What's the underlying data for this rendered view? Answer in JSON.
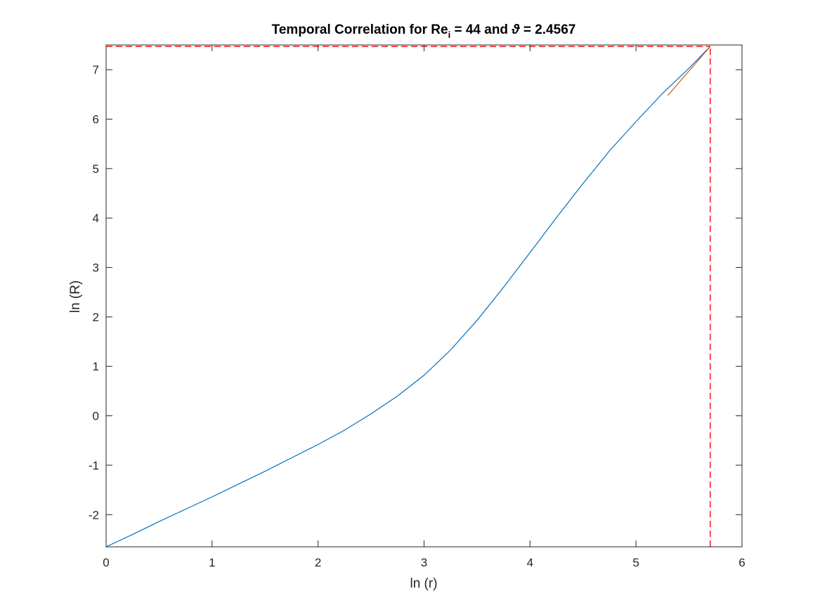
{
  "chart_data": {
    "type": "line",
    "title": {
      "prefix": "Temporal Correlation for Re",
      "subscript": "i",
      "middle": " = 44 and ",
      "symbol": "ϑ",
      "suffix": " = 2.4567"
    },
    "xlabel": "ln (r)",
    "ylabel": "ln (R)",
    "xlim": [
      0,
      6
    ],
    "ylim": [
      -2.65,
      7.5
    ],
    "xticks": [
      "0",
      "1",
      "2",
      "3",
      "4",
      "5",
      "6"
    ],
    "yticks": [
      "-2",
      "-1",
      "0",
      "1",
      "2",
      "3",
      "4",
      "5",
      "6",
      "7"
    ],
    "grid": false,
    "series": [
      {
        "color": "#0072BD",
        "style": "solid",
        "x": [
          0,
          0.25,
          0.5,
          0.75,
          1.0,
          1.25,
          1.5,
          1.75,
          2.0,
          2.25,
          2.5,
          2.75,
          3.0,
          3.25,
          3.5,
          3.75,
          4.0,
          4.25,
          4.5,
          4.75,
          5.0,
          5.25,
          5.5,
          5.7
        ],
        "y": [
          -2.65,
          -2.4,
          -2.14,
          -1.89,
          -1.64,
          -1.38,
          -1.12,
          -0.85,
          -0.58,
          -0.29,
          0.04,
          0.4,
          0.82,
          1.33,
          1.93,
          2.6,
          3.3,
          4.01,
          4.7,
          5.36,
          5.95,
          6.52,
          7.03,
          7.47
        ]
      },
      {
        "color": "#D95319",
        "style": "solid",
        "x": [
          5.3,
          5.7
        ],
        "y": [
          6.48,
          7.47
        ]
      },
      {
        "color": "#FF0000",
        "style": "dashed",
        "x": [
          0,
          5.7
        ],
        "y": [
          7.47,
          7.47
        ]
      },
      {
        "color": "#FF0000",
        "style": "dashed",
        "x": [
          5.7,
          5.7
        ],
        "y": [
          -2.65,
          7.47
        ]
      }
    ]
  }
}
